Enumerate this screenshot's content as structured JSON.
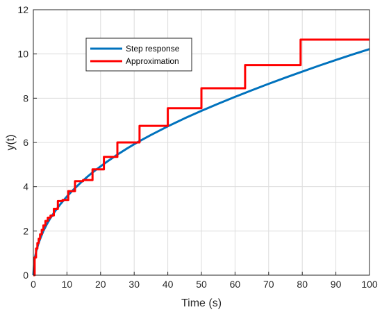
{
  "chart_data": {
    "type": "line",
    "xlabel": "Time (s)",
    "ylabel": "y(t)",
    "xlim": [
      0,
      100
    ],
    "ylim": [
      0,
      12
    ],
    "xticks": [
      "0",
      "10",
      "20",
      "30",
      "40",
      "50",
      "60",
      "70",
      "80",
      "90",
      "100"
    ],
    "yticks": [
      "0",
      "2",
      "4",
      "6",
      "8",
      "10",
      "12"
    ],
    "grid": true,
    "legend_position": "top-left",
    "series": [
      {
        "name": "Step response",
        "color": "#0072BD",
        "x": [
          0,
          0.25,
          0.5,
          1,
          1.5,
          2,
          3,
          4,
          5,
          6,
          7,
          8,
          10,
          12,
          14,
          16,
          18,
          20,
          22,
          25,
          28,
          31,
          35,
          40,
          45,
          50,
          55,
          60,
          65,
          70,
          75,
          80,
          85,
          90,
          95,
          100
        ],
        "y": [
          0,
          0.58,
          0.82,
          1.16,
          1.42,
          1.63,
          2.0,
          2.3,
          2.56,
          2.79,
          3.0,
          3.2,
          3.56,
          3.88,
          4.17,
          4.44,
          4.69,
          4.92,
          5.14,
          5.45,
          5.74,
          6.01,
          6.34,
          6.73,
          7.09,
          7.43,
          7.75,
          8.06,
          8.36,
          8.65,
          8.93,
          9.2,
          9.47,
          9.73,
          9.98,
          10.22
        ]
      },
      {
        "name": "Approximation",
        "color": "#FF0000",
        "x": [
          0,
          0.4,
          0.8,
          1.2,
          1.6,
          2.0,
          2.5,
          3.0,
          3.6,
          4.3,
          5.1,
          6.1,
          7.3,
          8.7,
          10.4,
          12.4,
          14.8,
          17.6,
          21.0,
          25.0,
          31.6,
          40.0,
          50.0,
          63.0,
          79.5,
          100
        ],
        "y": [
          0,
          0.8,
          1.2,
          1.45,
          1.65,
          1.85,
          2.05,
          2.25,
          2.45,
          2.6,
          2.7,
          3.0,
          3.35,
          3.4,
          3.8,
          4.25,
          4.3,
          4.78,
          5.35,
          6.0,
          6.75,
          7.55,
          8.45,
          9.5,
          10.65,
          10.65
        ],
        "step": "post"
      }
    ]
  }
}
